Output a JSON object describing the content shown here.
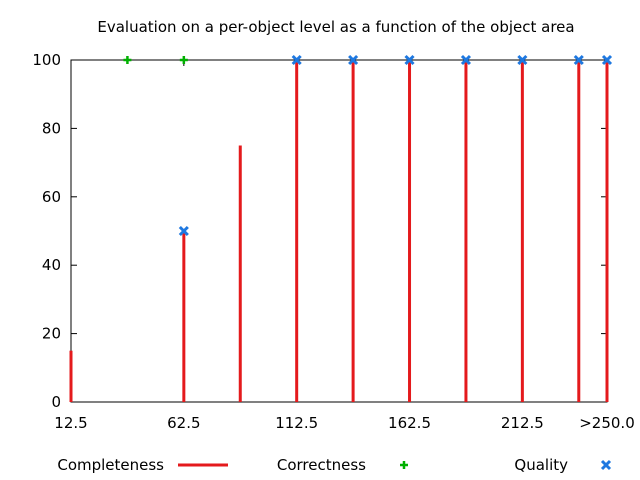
{
  "chart_data": {
    "type": "scatter",
    "title": "Evaluation on a per-object level as a function of the object area",
    "xlabel": "",
    "ylabel": "",
    "xlim": [
      12.5,
      250
    ],
    "ylim": [
      0,
      100
    ],
    "x_ticks": [
      {
        "value": 12.5,
        "label": "12.5"
      },
      {
        "value": 62.5,
        "label": "62.5"
      },
      {
        "value": 112.5,
        "label": "112.5"
      },
      {
        "value": 162.5,
        "label": "162.5"
      },
      {
        "value": 212.5,
        "label": "212.5"
      },
      {
        "value": 250,
        "label": ">250.0"
      }
    ],
    "y_ticks": [
      0,
      20,
      40,
      60,
      80,
      100
    ],
    "grid": false,
    "legend_position": "bottom",
    "series": [
      {
        "name": "Completeness",
        "style": "impulses",
        "color": "#e41a1c",
        "x": [
          12.5,
          62.5,
          87.5,
          112.5,
          137.5,
          162.5,
          187.5,
          212.5,
          237.5,
          250
        ],
        "y": [
          15,
          50,
          75,
          100,
          100,
          100,
          100,
          100,
          100,
          100
        ]
      },
      {
        "name": "Correctness",
        "style": "plus",
        "color": "#00b000",
        "x": [
          37.5,
          62.5
        ],
        "y": [
          100,
          100
        ]
      },
      {
        "name": "Quality",
        "style": "cross",
        "color": "#1e78e0",
        "x": [
          62.5,
          112.5,
          137.5,
          162.5,
          187.5,
          212.5,
          237.5,
          250
        ],
        "y": [
          50,
          100,
          100,
          100,
          100,
          100,
          100,
          100
        ]
      }
    ]
  }
}
